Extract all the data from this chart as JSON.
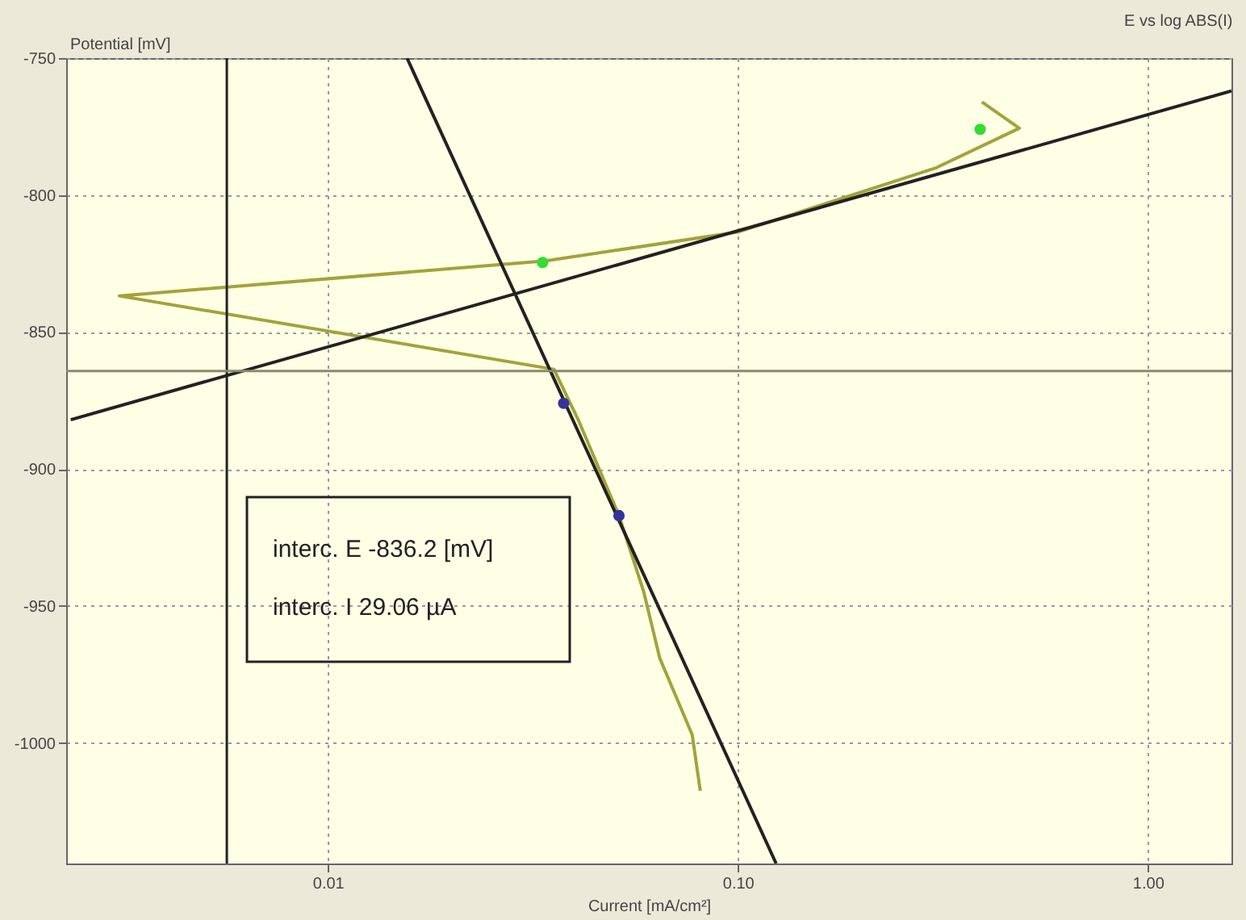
{
  "chart_data": {
    "type": "line",
    "title": "E vs log ABS(I)",
    "xlabel": "Current [mA/cm²]",
    "ylabel": "Potential [mV]",
    "log": "x",
    "xlim": [
      0.0023,
      1.6
    ],
    "ylim": [
      -1044,
      -750
    ],
    "xticks": [
      0.01,
      {
        "value": 0.1,
        "label": "0.10"
      },
      {
        "value": 1,
        "label": "1.00"
      }
    ],
    "yticks": [
      -750,
      -800,
      -850,
      -900,
      -950,
      -1000
    ],
    "grid": true,
    "series": [
      {
        "color": "#a3a33a",
        "x": [
          0.394,
          0.486,
          0.305,
          0.1,
          0.034,
          0.0031,
          0.0356,
          0.0408,
          0.0513,
          0.0589,
          0.0645,
          0.0774,
          0.081
        ],
        "values": [
          -766,
          -775.6,
          -790,
          -813.5,
          -824,
          -836.8,
          -863.6,
          -882,
          -917,
          -944.6,
          -969,
          -997,
          -1017.5
        ]
      },
      {
        "color": "#222222",
        "x": [
          0.00236,
          1.6
        ],
        "values": [
          -882,
          -762
        ]
      },
      {
        "color": "#222222",
        "x": [
          0.0156,
          0.124
        ],
        "values": [
          -750,
          -1044
        ]
      },
      {
        "type": "scatter",
        "marker": "circle",
        "color": "#33dd33",
        "x": [
          0.0334,
          0.39
        ],
        "values": [
          -824.6,
          -776
        ]
      },
      {
        "type": "scatter",
        "marker": "circle",
        "color": "#333399",
        "x": [
          0.0376,
          0.0513
        ],
        "values": [
          -876,
          -917
        ]
      }
    ],
    "ref_lines": [
      {
        "axis": "x",
        "value": 0.00567,
        "color": "#222222"
      },
      {
        "axis": "y",
        "value": -864.2,
        "color": "#8a8a6a"
      }
    ],
    "annotations": [
      "interc. E  -836.2 [mV]",
      "interc. I  29.06 µA"
    ]
  }
}
